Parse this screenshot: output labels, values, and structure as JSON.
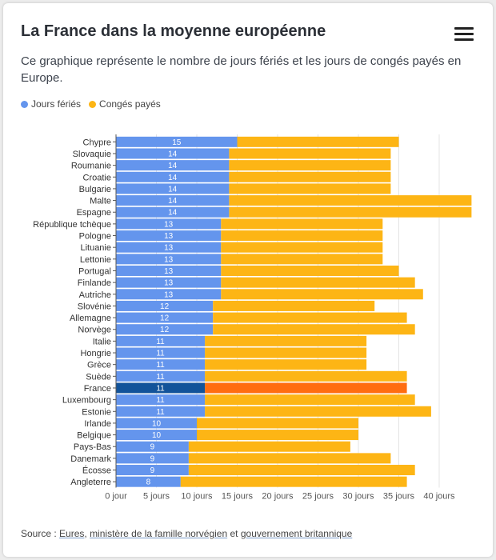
{
  "header": {
    "title": "La France dans la moyenne européenne",
    "subtitle": "Ce graphique représente le nombre de jours fériés et les jours de congés payés en Europe.",
    "menu_icon": "hamburger-menu-icon"
  },
  "footer": {
    "source_prefix": "Source : ",
    "link1": "Eures",
    "sep1": ", ",
    "link2": "ministère de la famille norvégien",
    "sep2": " et ",
    "link3": "gouvernement britannique"
  },
  "chart_data": {
    "type": "bar",
    "orientation": "horizontal",
    "stacked": true,
    "categories": [
      "Chypre",
      "Slovaquie",
      "Roumanie",
      "Croatie",
      "Bulgarie",
      "Malte",
      "Espagne",
      "République tchèque",
      "Pologne",
      "Lituanie",
      "Lettonie",
      "Portugal",
      "Finlande",
      "Autriche",
      "Slovénie",
      "Allemagne",
      "Norvège",
      "Italie",
      "Hongrie",
      "Grèce",
      "Suède",
      "France",
      "Luxembourg",
      "Estonie",
      "Irlande",
      "Belgique",
      "Pays-Bas",
      "Danemark",
      "Écosse",
      "Angleterre"
    ],
    "series": [
      {
        "name": "Jours fériés",
        "color": "#6495ed",
        "values": [
          15,
          14,
          14,
          14,
          14,
          14,
          14,
          13,
          13,
          13,
          13,
          13,
          13,
          13,
          12,
          12,
          12,
          11,
          11,
          11,
          11,
          11,
          11,
          11,
          10,
          10,
          9,
          9,
          9,
          8
        ]
      },
      {
        "name": "Congés payés",
        "color": "#fdb515",
        "values": [
          20,
          20,
          20,
          20,
          20,
          30,
          30,
          20,
          20,
          20,
          20,
          22,
          24,
          25,
          20,
          24,
          25,
          20,
          20,
          20,
          25,
          25,
          26,
          28,
          20,
          20,
          20,
          25,
          28,
          28
        ]
      }
    ],
    "highlight": {
      "category": "France",
      "colors": [
        "#12539a",
        "#ff6d10"
      ]
    },
    "xlim": [
      0,
      42
    ],
    "xticks": [
      0,
      5,
      10,
      15,
      20,
      25,
      30,
      35,
      40
    ],
    "tick_labels": [
      "0 jour",
      "5 jours",
      "10 jours",
      "15 jours",
      "20 jours",
      "25 jours",
      "30 jours",
      "35 jours",
      "40 jours"
    ],
    "grid": true,
    "legend_position": "top-left",
    "data_labels": "first series values inside bars"
  }
}
